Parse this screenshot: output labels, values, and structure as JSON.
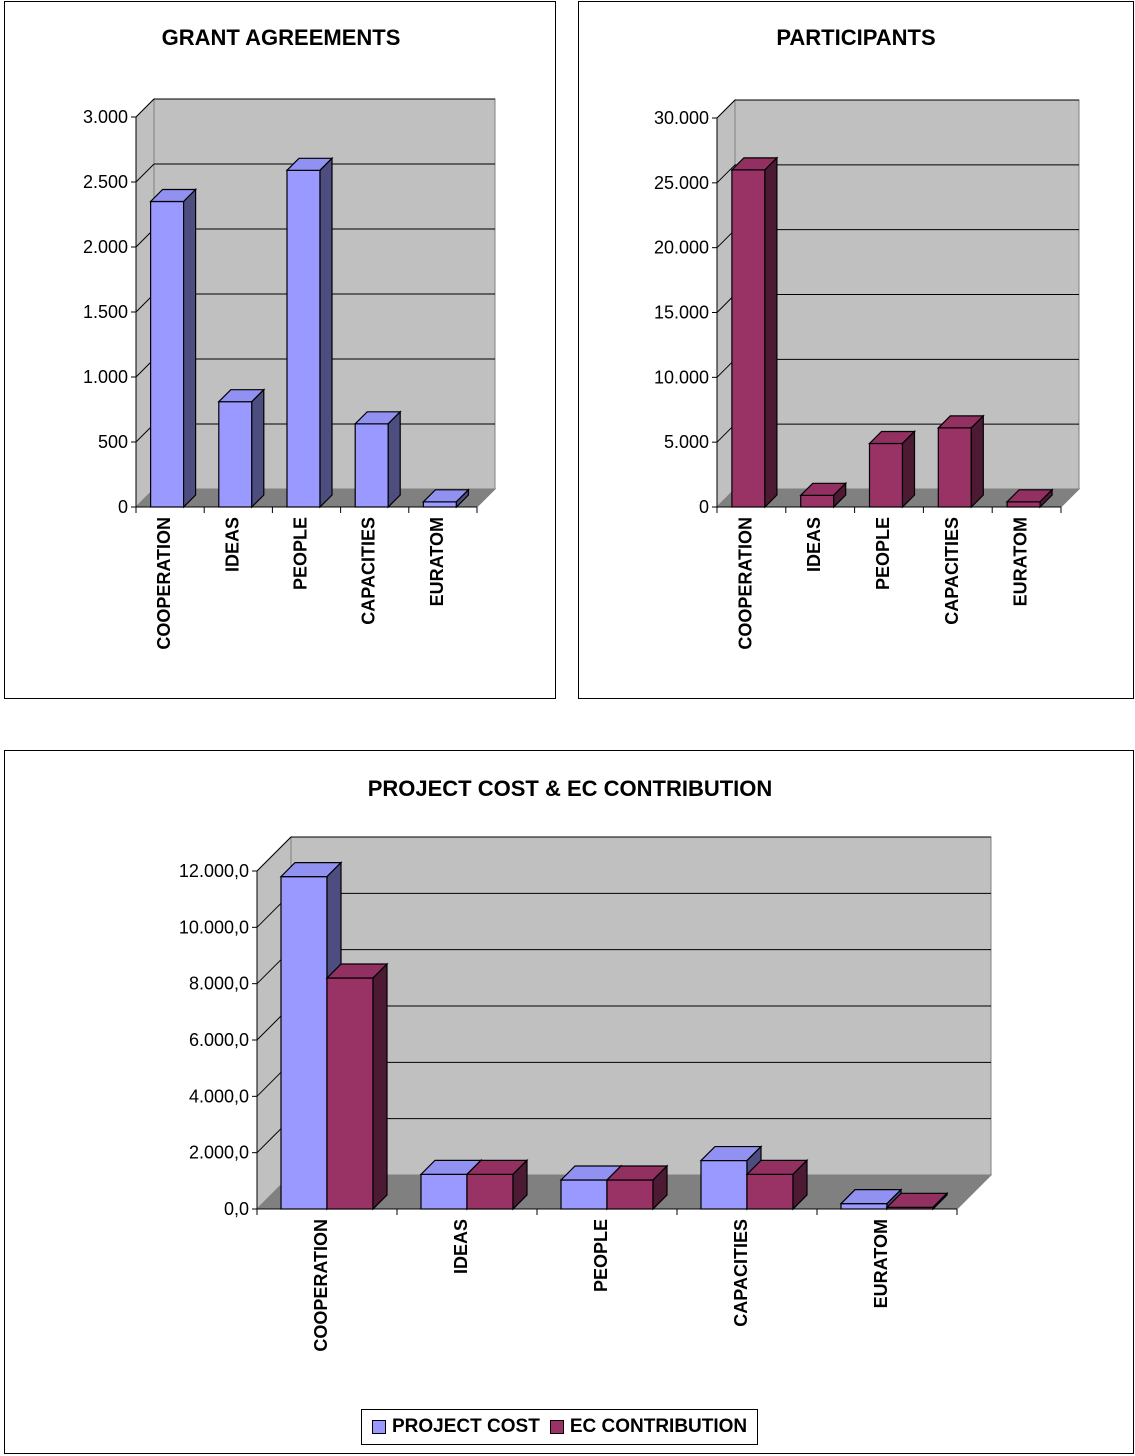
{
  "colors": {
    "blue": "#9999ff",
    "maroon": "#993366",
    "wall": "#c0c0c0",
    "floor": "#808080"
  },
  "chart_data": [
    {
      "type": "bar",
      "title": "GRANT AGREEMENTS",
      "categories": [
        "COOPERATION",
        "IDEAS",
        "PEOPLE",
        "CAPACITIES",
        "EURATOM"
      ],
      "series": [
        {
          "values": [
            2350,
            810,
            2590,
            640,
            40
          ],
          "color": "#9999ff"
        }
      ],
      "ylim": [
        0,
        3000
      ],
      "yticks": [
        0,
        500,
        1000,
        1500,
        2000,
        2500,
        3000
      ],
      "ytick_labels": [
        "0",
        "500",
        "1.000",
        "1.500",
        "2.000",
        "2.500",
        "3.000"
      ],
      "grid": true,
      "legend": false
    },
    {
      "type": "bar",
      "title": "PARTICIPANTS",
      "categories": [
        "COOPERATION",
        "IDEAS",
        "PEOPLE",
        "CAPACITIES",
        "EURATOM"
      ],
      "series": [
        {
          "values": [
            26000,
            900,
            4900,
            6100,
            400
          ],
          "color": "#993366"
        }
      ],
      "ylim": [
        0,
        30000
      ],
      "yticks": [
        0,
        5000,
        10000,
        15000,
        20000,
        25000,
        30000
      ],
      "ytick_labels": [
        "0",
        "5.000",
        "10.000",
        "15.000",
        "20.000",
        "25.000",
        "30.000"
      ],
      "grid": true,
      "legend": false
    },
    {
      "type": "bar",
      "title": "PROJECT COST & EC CONTRIBUTION",
      "categories": [
        "COOPERATION",
        "IDEAS",
        "PEOPLE",
        "CAPACITIES",
        "EURATOM"
      ],
      "series": [
        {
          "name": "PROJECT COST",
          "values": [
            11800,
            1230,
            1030,
            1720,
            190
          ],
          "color": "#9999ff"
        },
        {
          "name": "EC CONTRIBUTION",
          "values": [
            8200,
            1230,
            1030,
            1230,
            60
          ],
          "color": "#993366"
        }
      ],
      "ylim": [
        0,
        12000
      ],
      "yticks": [
        0,
        2000,
        4000,
        6000,
        8000,
        10000,
        12000
      ],
      "ytick_labels": [
        "0,0",
        "2.000,0",
        "4.000,0",
        "6.000,0",
        "8.000,0",
        "10.000,0",
        "12.000,0"
      ],
      "grid": true,
      "legend": "bottom-center"
    }
  ]
}
